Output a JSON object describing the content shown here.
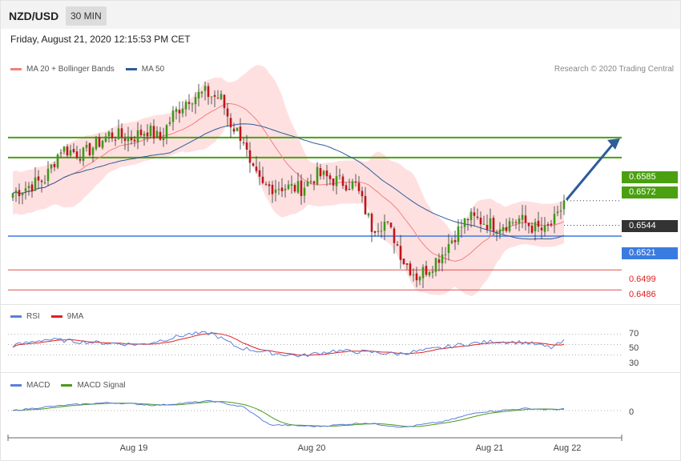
{
  "header": {
    "pair": "NZD/USD",
    "timeframe": "30 MIN",
    "datetime": "Friday, August 21, 2020 12:15:53 PM CET"
  },
  "legend_main": [
    {
      "label": "MA 20 + Bollinger Bands",
      "color": "#f08080"
    },
    {
      "label": "MA 50",
      "color": "#2f5c9a"
    }
  ],
  "credit": "Research © 2020 Trading Central",
  "legend_rsi": [
    {
      "label": "RSI",
      "color": "#5b7fd8"
    },
    {
      "label": "9MA",
      "color": "#e02020"
    }
  ],
  "legend_macd": [
    {
      "label": "MACD",
      "color": "#5b7fd8"
    },
    {
      "label": "MACD Signal",
      "color": "#4c9a1a"
    }
  ],
  "levels": {
    "resistance2": "0.6585",
    "resistance1": "0.6572",
    "last": "0.6544",
    "pivot": "0.6521",
    "support1": "0.6499",
    "support2": "0.6486"
  },
  "rsi_ticks": [
    "70",
    "50",
    "30"
  ],
  "macd_ticks": [
    "0"
  ],
  "x_labels": [
    "Aug 19",
    "Aug 20",
    "Aug 21",
    "Aug 22"
  ],
  "colors": {
    "up": "#3a9a1a",
    "down": "#c0141c",
    "resistance": "#4aa010",
    "pivot": "#3a7be0",
    "support": "#e05050",
    "band": "#ffd6d6"
  },
  "chart_data": {
    "type": "candlestick",
    "ylim": [
      0.6482,
      0.6625
    ],
    "x_ticks": [
      "Aug 19",
      "Aug 20",
      "Aug 21",
      "Aug 22"
    ],
    "key_levels": [
      0.6585,
      0.6572,
      0.6544,
      0.6521,
      0.6499,
      0.6486
    ],
    "close_anchors": [
      {
        "i": 0,
        "c": 0.6549
      },
      {
        "i": 10,
        "c": 0.6558
      },
      {
        "i": 15,
        "c": 0.6578
      },
      {
        "i": 22,
        "c": 0.6574
      },
      {
        "i": 30,
        "c": 0.6587
      },
      {
        "i": 37,
        "c": 0.6585
      },
      {
        "i": 42,
        "c": 0.659
      },
      {
        "i": 46,
        "c": 0.6584
      },
      {
        "i": 50,
        "c": 0.66
      },
      {
        "i": 55,
        "c": 0.6611
      },
      {
        "i": 60,
        "c": 0.6614
      },
      {
        "i": 65,
        "c": 0.661
      },
      {
        "i": 68,
        "c": 0.6594
      },
      {
        "i": 72,
        "c": 0.6584
      },
      {
        "i": 74,
        "c": 0.6565
      },
      {
        "i": 78,
        "c": 0.6553
      },
      {
        "i": 84,
        "c": 0.6553
      },
      {
        "i": 90,
        "c": 0.6552
      },
      {
        "i": 95,
        "c": 0.6561
      },
      {
        "i": 101,
        "c": 0.6557
      },
      {
        "i": 107,
        "c": 0.6554
      },
      {
        "i": 112,
        "c": 0.6527
      },
      {
        "i": 116,
        "c": 0.653
      },
      {
        "i": 119,
        "c": 0.652
      },
      {
        "i": 122,
        "c": 0.6505
      },
      {
        "i": 126,
        "c": 0.6495
      },
      {
        "i": 130,
        "c": 0.6501
      },
      {
        "i": 134,
        "c": 0.651
      },
      {
        "i": 138,
        "c": 0.6522
      },
      {
        "i": 142,
        "c": 0.6533
      },
      {
        "i": 146,
        "c": 0.6531
      },
      {
        "i": 150,
        "c": 0.6528
      },
      {
        "i": 154,
        "c": 0.6529
      },
      {
        "i": 158,
        "c": 0.6532
      },
      {
        "i": 162,
        "c": 0.6527
      },
      {
        "i": 166,
        "c": 0.6524
      },
      {
        "i": 170,
        "c": 0.6533
      },
      {
        "i": 172,
        "c": 0.6544
      }
    ],
    "rsi": {
      "ylim": [
        0,
        100
      ],
      "anchors": [
        {
          "i": 0,
          "v": 48
        },
        {
          "i": 10,
          "v": 60
        },
        {
          "i": 25,
          "v": 54
        },
        {
          "i": 40,
          "v": 50
        },
        {
          "i": 55,
          "v": 70
        },
        {
          "i": 62,
          "v": 72
        },
        {
          "i": 70,
          "v": 45
        },
        {
          "i": 80,
          "v": 34
        },
        {
          "i": 90,
          "v": 28
        },
        {
          "i": 100,
          "v": 38
        },
        {
          "i": 110,
          "v": 36
        },
        {
          "i": 120,
          "v": 32
        },
        {
          "i": 130,
          "v": 40
        },
        {
          "i": 140,
          "v": 50
        },
        {
          "i": 150,
          "v": 56
        },
        {
          "i": 160,
          "v": 54
        },
        {
          "i": 168,
          "v": 44
        },
        {
          "i": 172,
          "v": 56
        }
      ]
    },
    "macd": {
      "anchors": [
        {
          "i": 0,
          "v": 0.0
        },
        {
          "i": 10,
          "v": 0.0002
        },
        {
          "i": 20,
          "v": 0.00035
        },
        {
          "i": 30,
          "v": 0.00045
        },
        {
          "i": 45,
          "v": 0.0003
        },
        {
          "i": 62,
          "v": 0.00055
        },
        {
          "i": 72,
          "v": 0.0002
        },
        {
          "i": 80,
          "v": -0.0008
        },
        {
          "i": 95,
          "v": -0.0009
        },
        {
          "i": 110,
          "v": -0.0007
        },
        {
          "i": 122,
          "v": -0.00095
        },
        {
          "i": 135,
          "v": -0.0006
        },
        {
          "i": 145,
          "v": -0.0001
        },
        {
          "i": 160,
          "v": 0.00012
        },
        {
          "i": 168,
          "v": 5e-05
        },
        {
          "i": 172,
          "v": 0.0001
        }
      ]
    }
  }
}
